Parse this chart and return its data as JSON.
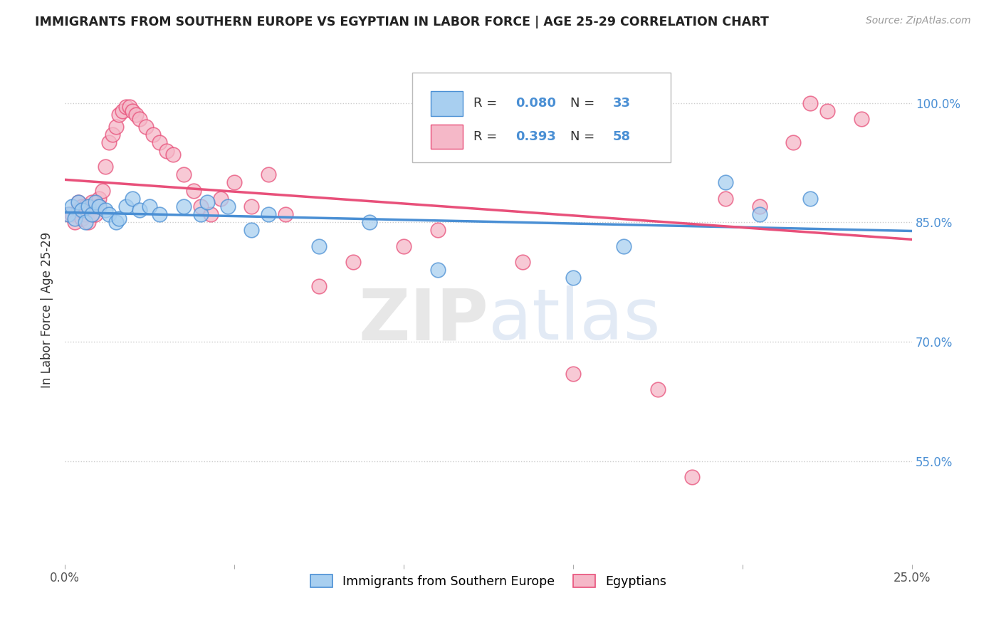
{
  "title": "IMMIGRANTS FROM SOUTHERN EUROPE VS EGYPTIAN IN LABOR FORCE | AGE 25-29 CORRELATION CHART",
  "source": "Source: ZipAtlas.com",
  "ylabel": "In Labor Force | Age 25-29",
  "xlim": [
    0.0,
    0.25
  ],
  "ylim": [
    0.42,
    1.06
  ],
  "yticks": [
    0.55,
    0.7,
    0.85,
    1.0
  ],
  "yticklabels": [
    "55.0%",
    "70.0%",
    "85.0%",
    "100.0%"
  ],
  "color_blue": "#a8cff0",
  "color_pink": "#f5b8c8",
  "line_color_blue": "#4a8fd4",
  "line_color_pink": "#e8507a",
  "watermark_zip": "ZIP",
  "watermark_atlas": "atlas",
  "blue_x": [
    0.001,
    0.002,
    0.003,
    0.004,
    0.005,
    0.006,
    0.007,
    0.008,
    0.009,
    0.01,
    0.012,
    0.013,
    0.015,
    0.016,
    0.018,
    0.02,
    0.022,
    0.025,
    0.028,
    0.035,
    0.04,
    0.042,
    0.048,
    0.055,
    0.06,
    0.075,
    0.09,
    0.11,
    0.15,
    0.165,
    0.195,
    0.205,
    0.22
  ],
  "blue_y": [
    0.86,
    0.87,
    0.855,
    0.875,
    0.865,
    0.85,
    0.87,
    0.86,
    0.875,
    0.87,
    0.865,
    0.86,
    0.85,
    0.855,
    0.87,
    0.88,
    0.865,
    0.87,
    0.86,
    0.87,
    0.86,
    0.875,
    0.87,
    0.84,
    0.86,
    0.82,
    0.85,
    0.79,
    0.78,
    0.82,
    0.9,
    0.86,
    0.88
  ],
  "pink_x": [
    0.001,
    0.002,
    0.003,
    0.004,
    0.004,
    0.005,
    0.005,
    0.006,
    0.006,
    0.007,
    0.007,
    0.008,
    0.008,
    0.009,
    0.009,
    0.01,
    0.01,
    0.011,
    0.012,
    0.013,
    0.014,
    0.015,
    0.016,
    0.017,
    0.018,
    0.019,
    0.02,
    0.021,
    0.022,
    0.024,
    0.026,
    0.028,
    0.03,
    0.032,
    0.035,
    0.038,
    0.04,
    0.043,
    0.046,
    0.05,
    0.055,
    0.06,
    0.065,
    0.075,
    0.085,
    0.1,
    0.11,
    0.135,
    0.15,
    0.175,
    0.185,
    0.195,
    0.205,
    0.215,
    0.22,
    0.225,
    0.235
  ],
  "pink_y": [
    0.86,
    0.86,
    0.85,
    0.875,
    0.865,
    0.87,
    0.855,
    0.87,
    0.86,
    0.87,
    0.85,
    0.86,
    0.875,
    0.87,
    0.86,
    0.88,
    0.87,
    0.89,
    0.92,
    0.95,
    0.96,
    0.97,
    0.985,
    0.99,
    0.995,
    0.995,
    0.99,
    0.985,
    0.98,
    0.97,
    0.96,
    0.95,
    0.94,
    0.935,
    0.91,
    0.89,
    0.87,
    0.86,
    0.88,
    0.9,
    0.87,
    0.91,
    0.86,
    0.77,
    0.8,
    0.82,
    0.84,
    0.8,
    0.66,
    0.64,
    0.53,
    0.88,
    0.87,
    0.95,
    1.0,
    0.99,
    0.98
  ]
}
